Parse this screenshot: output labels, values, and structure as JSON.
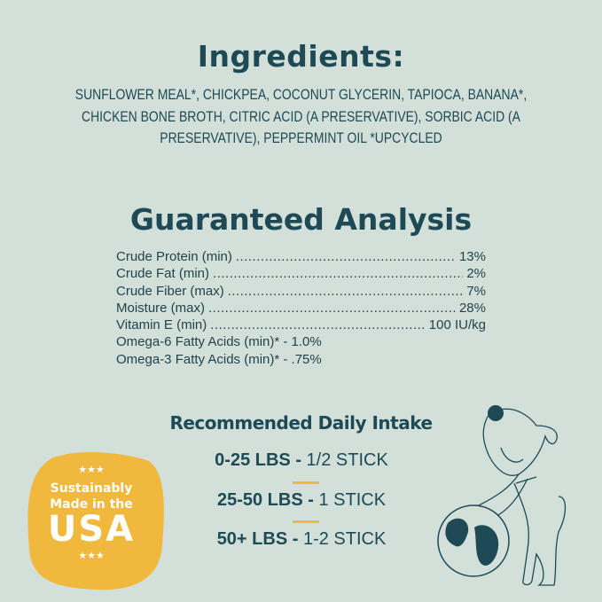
{
  "ingredients": {
    "title": "Ingredients:",
    "lines": [
      "SUNFLOWER MEAL*, CHICKPEA, COCONUT GLYCERIN, TAPIOCA, BANANA*,",
      "CHICKEN BONE BROTH, CITRIC ACID (A PRESERVATIVE), SORBIC ACID (A",
      "PRESERVATIVE), PEPPERMINT OIL *UPCYCLED"
    ]
  },
  "analysis": {
    "title": "Guaranteed Analysis",
    "rows": [
      {
        "label": "Crude Protein (min)",
        "value": "13%"
      },
      {
        "label": "Crude Fat (min)",
        "value": "2%"
      },
      {
        "label": "Crude Fiber (max)",
        "value": "7%"
      },
      {
        "label": "Moisture (max)",
        "value": "28%"
      },
      {
        "label": "Vitamin E (min)",
        "value": "100 IU/kg"
      }
    ],
    "extra": [
      "Omega-6 Fatty Acids (min)* - 1.0%",
      "Omega-3 Fatty Acids (min)* - .75%"
    ]
  },
  "intake": {
    "title": "Recommended Daily Intake",
    "rows": [
      {
        "weight": "0-25 LBS -",
        "amount": "1/2 STICK"
      },
      {
        "weight": "25-50 LBS -",
        "amount": "1 STICK"
      },
      {
        "weight": "50+ LBS -",
        "amount": "1-2 STICK"
      }
    ]
  },
  "badge": {
    "stars": "★★★",
    "line1": "Sustainably",
    "line2": "Made in the",
    "line3": "USA"
  },
  "colors": {
    "background": "#d3e0da",
    "text": "#1d4a55",
    "accent": "#f0b93d"
  },
  "icons": [
    "dog-with-globe-illustration",
    "stars-icon"
  ]
}
